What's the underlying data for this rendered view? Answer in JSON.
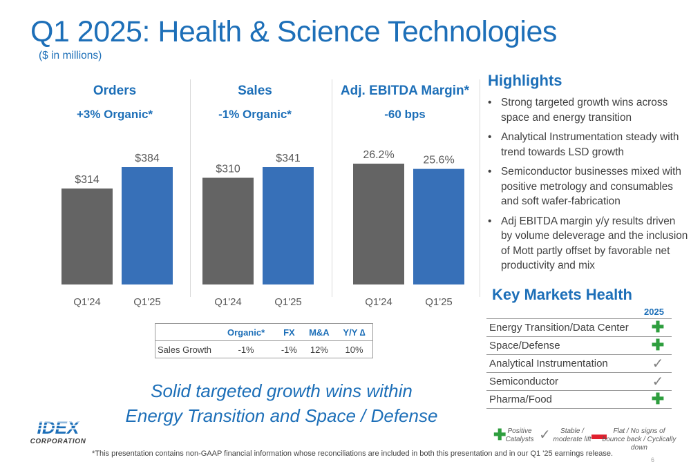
{
  "header": {
    "title": "Q1 2025: Health & Science Technologies",
    "subtitle": "($ in millions)"
  },
  "chart_data": [
    {
      "type": "bar",
      "title": "Orders",
      "subtitle": "+3% Organic*",
      "categories": [
        "Q1'24",
        "Q1'25"
      ],
      "values": [
        314,
        384
      ],
      "value_labels": [
        "$314",
        "$384"
      ],
      "colors": [
        "#646464",
        "#3770b8"
      ]
    },
    {
      "type": "bar",
      "title": "Sales",
      "subtitle": "-1% Organic*",
      "categories": [
        "Q1'24",
        "Q1'25"
      ],
      "values": [
        310,
        341
      ],
      "value_labels": [
        "$310",
        "$341"
      ],
      "colors": [
        "#646464",
        "#3770b8"
      ]
    },
    {
      "type": "bar",
      "title": "Adj. EBITDA Margin*",
      "subtitle": "-60 bps",
      "categories": [
        "Q1'24",
        "Q1'25"
      ],
      "values": [
        26.2,
        25.6
      ],
      "value_labels": [
        "26.2%",
        "25.6%"
      ],
      "colors": [
        "#646464",
        "#3770b8"
      ]
    }
  ],
  "sales_growth_table": {
    "columns": [
      "Organic*",
      "FX",
      "M&A",
      "Y/Y ∆"
    ],
    "row_label": "Sales Growth",
    "values": [
      "-1%",
      "-1%",
      "12%",
      "10%"
    ]
  },
  "highlights": {
    "title": "Highlights",
    "bullet_char": "•",
    "items": [
      "Strong targeted growth wins across space and energy transition",
      "Analytical Instrumentation steady with trend towards LSD growth",
      "Semiconductor businesses mixed with positive metrology and consumables and soft wafer-fabrication",
      "Adj EBITDA margin y/y results driven by volume deleverage and the inclusion of Mott partly offset by favorable net productivity and mix"
    ]
  },
  "key_markets": {
    "title": "Key Markets Health",
    "year": "2025",
    "rows": [
      {
        "label": "Energy Transition/Data Center",
        "status": "positive",
        "symbol": "✚"
      },
      {
        "label": "Space/Defense",
        "status": "positive",
        "symbol": "✚"
      },
      {
        "label": "Analytical Instrumentation",
        "status": "stable",
        "symbol": "✓"
      },
      {
        "label": "Semiconductor",
        "status": "stable",
        "symbol": "✓"
      },
      {
        "label": "Pharma/Food",
        "status": "positive",
        "symbol": "✚"
      }
    ],
    "legend": {
      "positive": {
        "symbol": "✚",
        "label": "Positive Catalysts"
      },
      "stable": {
        "symbol": "✓",
        "label": "Stable / moderate lift"
      },
      "flat": {
        "symbol": "▬",
        "label": "Flat / No signs of bounce back / Cyclically down"
      }
    }
  },
  "tagline": "Solid targeted growth wins within Energy Transition and Space / Defense",
  "footnote": "*This presentation contains non-GAAP financial information whose reconciliations are included in both this presentation and in our Q1 '25 earnings release.",
  "page_number": "6",
  "logo": {
    "wordmark": "IDEX",
    "sub": "CORPORATION"
  },
  "colors": {
    "brand_blue": "#1d6fb8",
    "bar_prior": "#646464",
    "bar_current": "#3770b8",
    "positive": "#2e9e3e",
    "negative": "#e0202e"
  }
}
